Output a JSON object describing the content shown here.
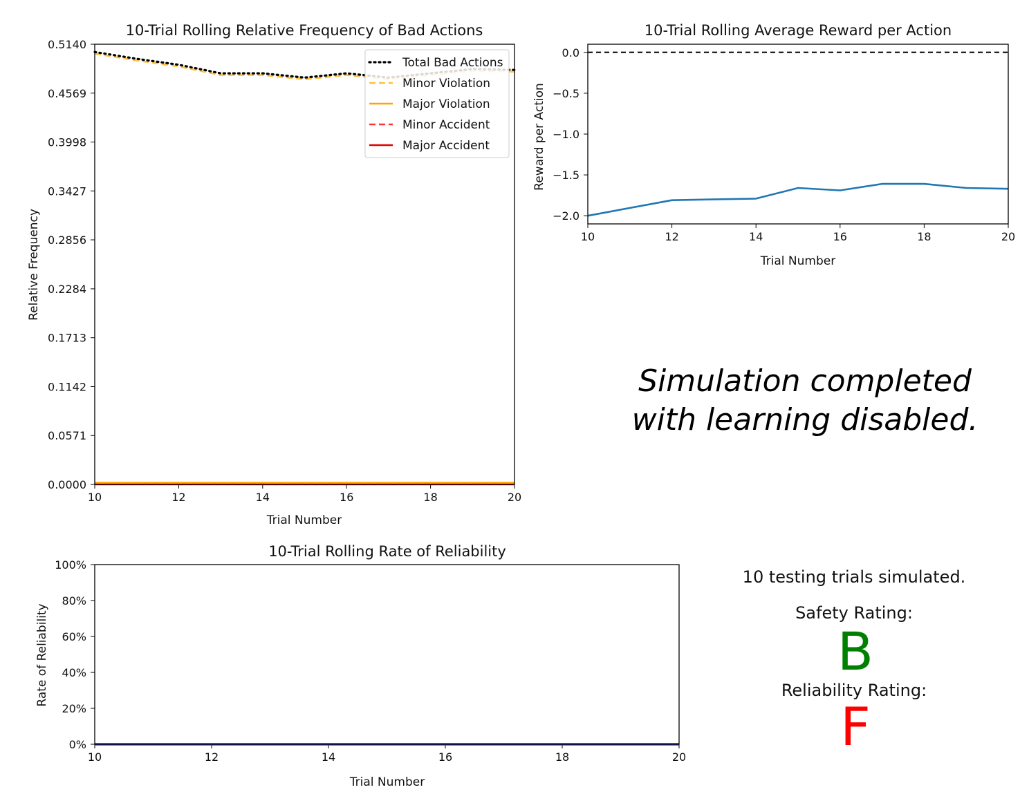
{
  "chart_data": [
    {
      "type": "line",
      "title": "10-Trial Rolling Relative Frequency of Bad Actions",
      "xlabel": "Trial Number",
      "ylabel": "Relative Frequency",
      "xlim": [
        10,
        20
      ],
      "ylim": [
        0,
        0.514
      ],
      "xticks": [
        "10",
        "12",
        "14",
        "16",
        "18",
        "20"
      ],
      "yticks": [
        "0.0000",
        "0.0571",
        "0.1142",
        "0.1713",
        "0.2284",
        "0.2856",
        "0.3427",
        "0.3998",
        "0.4569",
        "0.5140"
      ],
      "legend_position": "top-right",
      "x": [
        10,
        11,
        12,
        13,
        14,
        15,
        16,
        17,
        18,
        19,
        20
      ],
      "series": [
        {
          "name": "Total Bad Actions",
          "color": "#000000",
          "style": "dotted",
          "values": [
            0.505,
            0.497,
            0.49,
            0.48,
            0.48,
            0.475,
            0.48,
            0.475,
            0.48,
            0.485,
            0.484
          ]
        },
        {
          "name": "Minor Violation",
          "color": "#ffc040",
          "style": "dashed",
          "values": [
            0.503,
            0.495,
            0.488,
            0.478,
            0.478,
            0.473,
            0.478,
            0.473,
            0.478,
            0.483,
            0.482
          ]
        },
        {
          "name": "Major Violation",
          "color": "#ffa500",
          "style": "solid",
          "values": [
            0.002,
            0.002,
            0.002,
            0.002,
            0.002,
            0.002,
            0.002,
            0.002,
            0.002,
            0.002,
            0.002
          ]
        },
        {
          "name": "Minor Accident",
          "color": "#ff3333",
          "style": "dashed",
          "values": [
            0.001,
            0.001,
            0.001,
            0.001,
            0.001,
            0.001,
            0.001,
            0.001,
            0.001,
            0.001,
            0.001
          ]
        },
        {
          "name": "Major Accident",
          "color": "#e00000",
          "style": "solid",
          "values": [
            0,
            0,
            0,
            0,
            0,
            0,
            0,
            0,
            0,
            0,
            0
          ]
        }
      ]
    },
    {
      "type": "line",
      "title": "10-Trial Rolling Average Reward per Action",
      "xlabel": "Trial Number",
      "ylabel": "Reward per Action",
      "xlim": [
        10,
        20
      ],
      "ylim": [
        -2.1,
        0.1
      ],
      "xticks": [
        "10",
        "12",
        "14",
        "16",
        "18",
        "20"
      ],
      "yticks": [
        "0.0",
        "−0.5",
        "−1.0",
        "−1.5",
        "−2.0"
      ],
      "reference_line": 0,
      "series": [
        {
          "color": "#1f77b4",
          "x": [
            10,
            12,
            14,
            15,
            16,
            17,
            18,
            19,
            20
          ],
          "values": [
            -2.0,
            -1.81,
            -1.79,
            -1.66,
            -1.69,
            -1.61,
            -1.61,
            -1.66,
            -1.67
          ]
        }
      ]
    },
    {
      "type": "line",
      "title": "10-Trial Rolling Rate of Reliability",
      "xlabel": "Trial Number",
      "ylabel": "Rate of Reliability",
      "xlim": [
        10,
        20
      ],
      "ylim": [
        0,
        1.0
      ],
      "xticks": [
        "10",
        "12",
        "14",
        "16",
        "18",
        "20"
      ],
      "yticks": [
        "0%",
        "20%",
        "40%",
        "60%",
        "80%",
        "100%"
      ],
      "series": [
        {
          "color": "#3333dd",
          "x": [
            10,
            20
          ],
          "values": [
            0,
            0
          ]
        }
      ]
    }
  ],
  "status": {
    "line1": "Simulation completed",
    "line2": "with learning disabled."
  },
  "summary": {
    "trials_text": "10 testing trials simulated.",
    "safety_label": "Safety Rating:",
    "safety_grade": "B",
    "safety_color": "#008000",
    "reliability_label": "Reliability Rating:",
    "reliability_grade": "F",
    "reliability_color": "#ff0000"
  }
}
